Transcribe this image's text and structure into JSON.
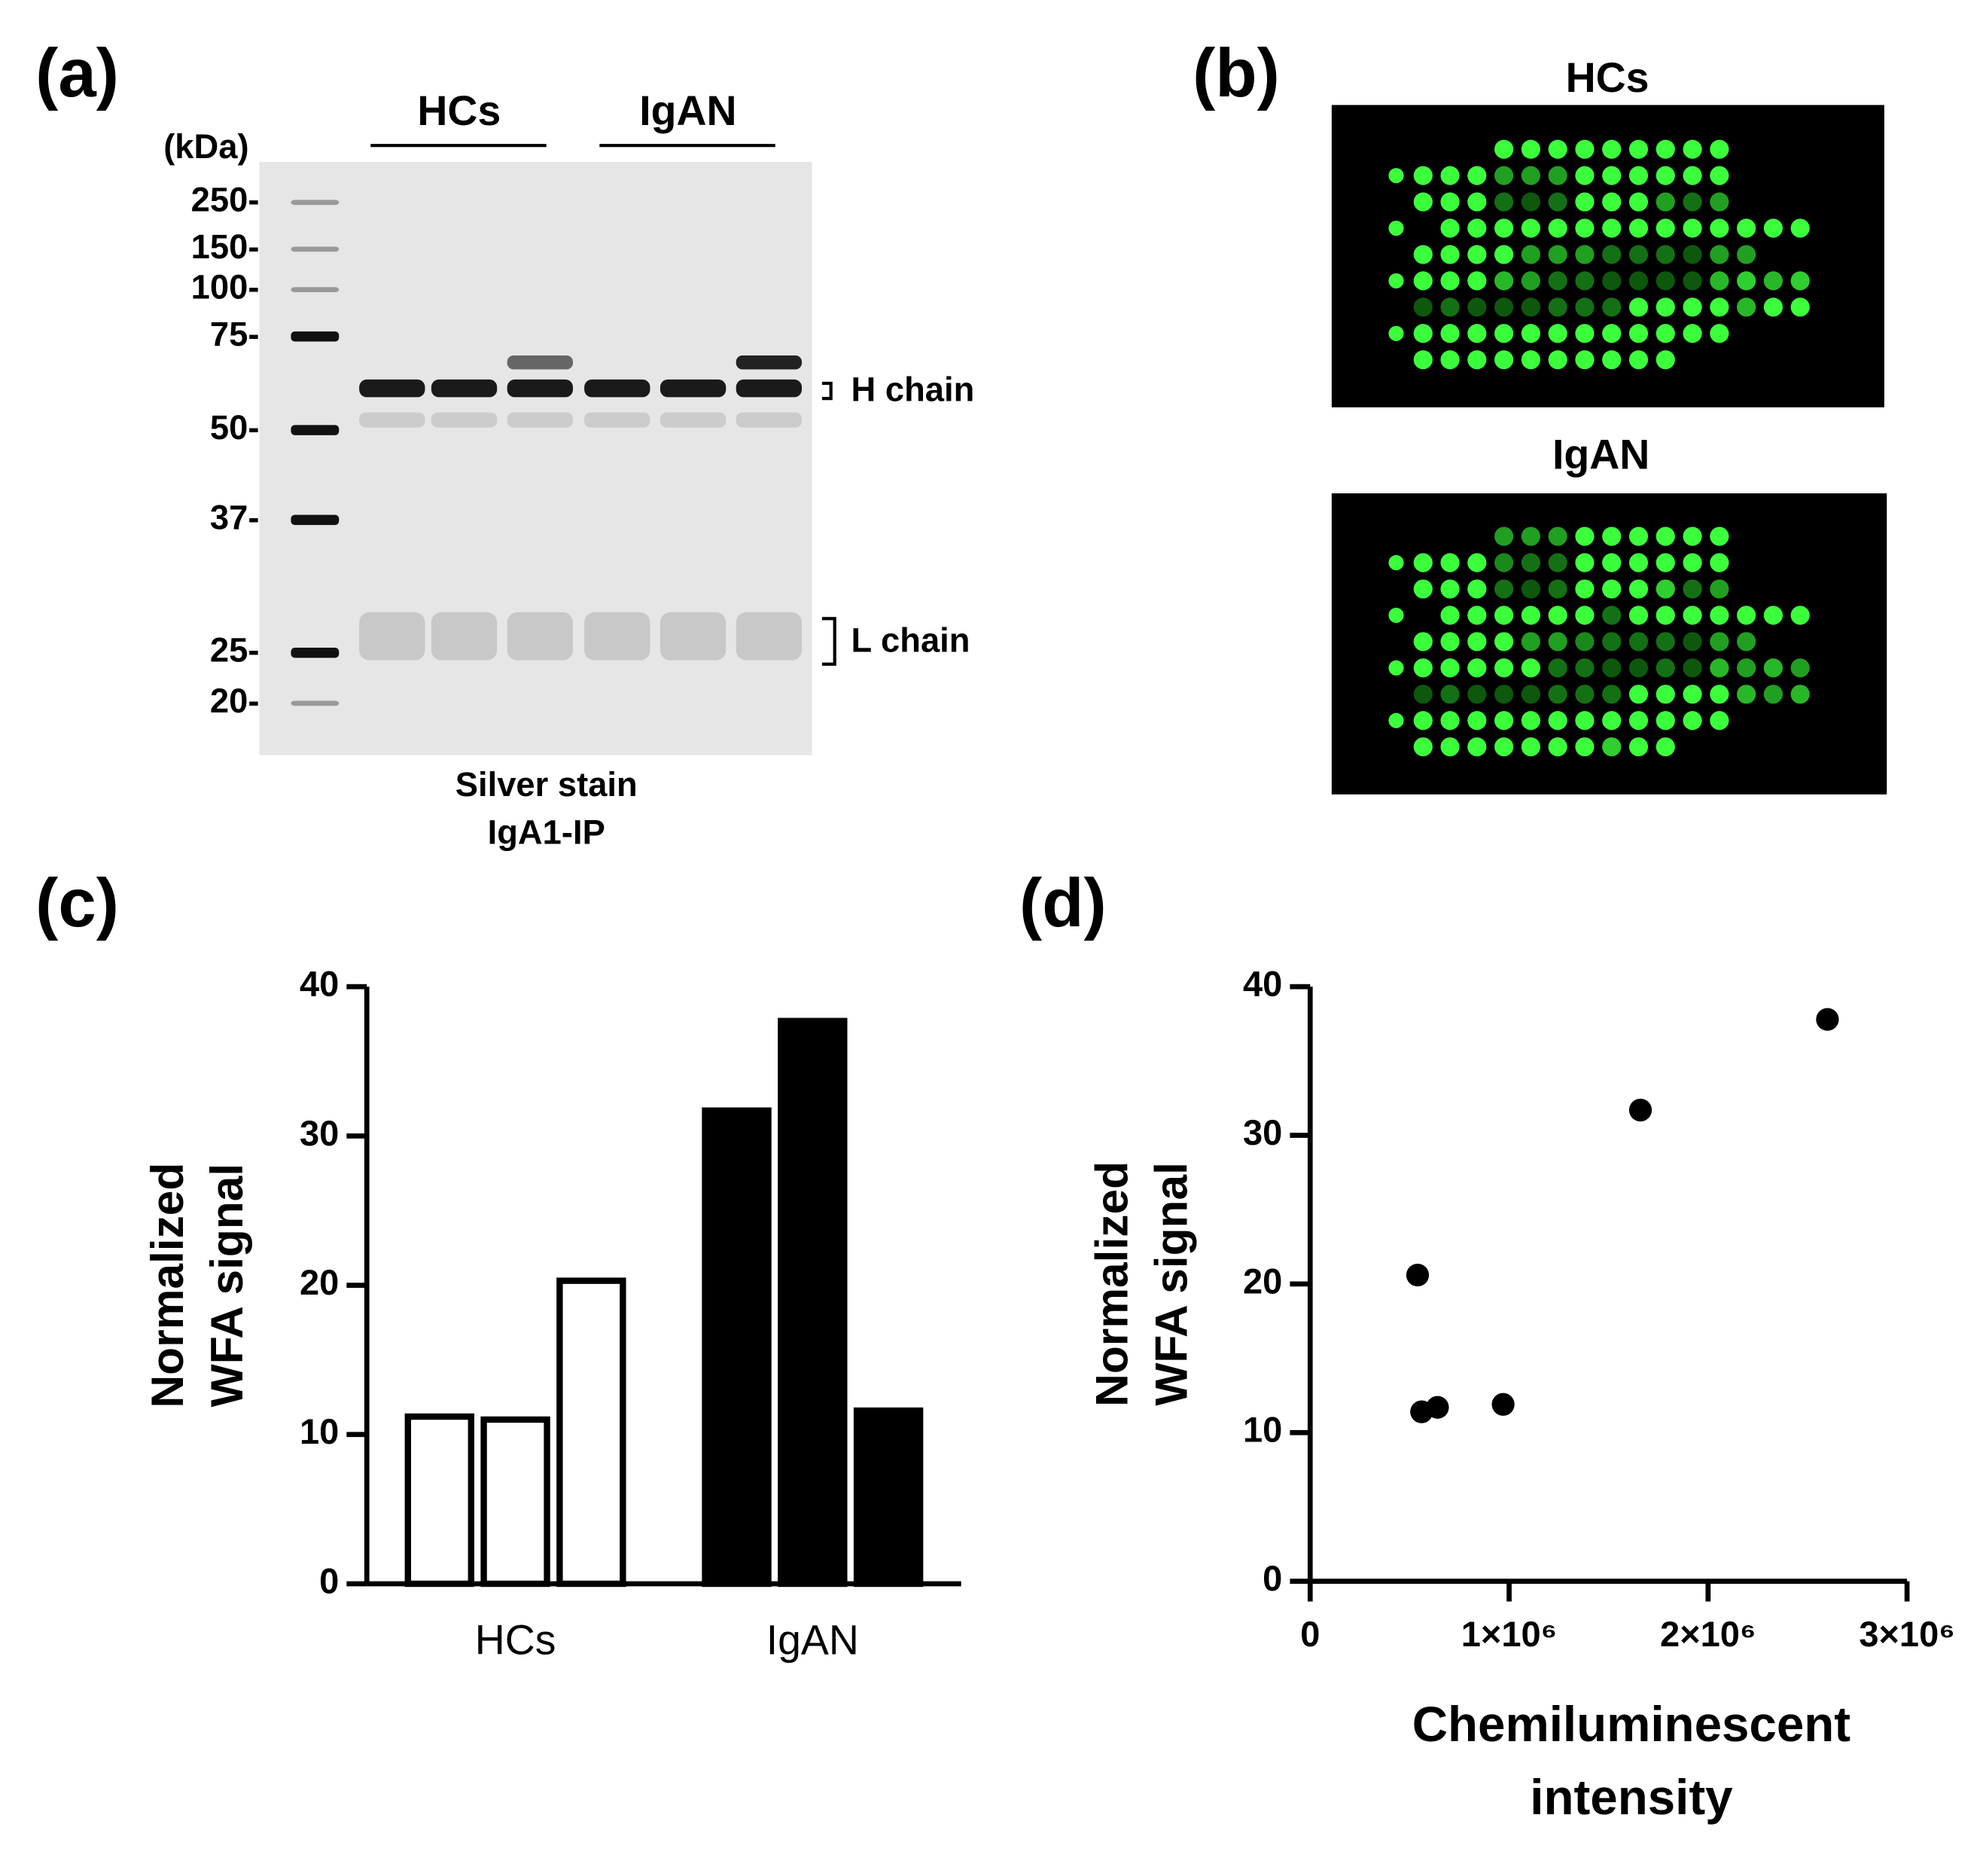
{
  "panel_a": {
    "label": "(a)",
    "unit": "(kDa)",
    "markers": [
      "250-",
      "150-",
      "100-",
      "75-",
      "50-",
      "37-",
      "25-",
      "20-"
    ],
    "groups": [
      "HCs",
      "IgAN"
    ],
    "bands": [
      "H chain",
      "L chain"
    ],
    "caption": [
      "Silver stain",
      "IgA1-IP"
    ]
  },
  "panel_b": {
    "label": "(b)",
    "titles": [
      "HCs",
      "IgAN"
    ]
  },
  "chart_data": [
    {
      "type": "bar",
      "panel": "(c)",
      "ylabel": [
        "Normalized",
        "WFA signal"
      ],
      "categories": [
        "HCs",
        "IgAN"
      ],
      "values": [
        [
          11.2,
          11.0,
          20.3
        ],
        [
          31.7,
          37.7,
          11.6
        ]
      ],
      "colors": [
        "#ffffff",
        "#000000"
      ],
      "ylim": [
        0,
        40
      ],
      "yticks": [
        0,
        10,
        20,
        30,
        40
      ]
    },
    {
      "type": "scatter",
      "panel": "(d)",
      "ylabel": [
        "Normalized",
        "WFA signal"
      ],
      "xlabel": [
        "Chemiluminescent",
        "intensity"
      ],
      "x": [
        540000,
        560000,
        640000,
        970000,
        1660000,
        2600000
      ],
      "y": [
        20.6,
        11.4,
        11.7,
        11.9,
        31.7,
        37.8
      ],
      "color": "#000000",
      "xlim": [
        0,
        3000000
      ],
      "xticks": [
        0,
        {
          "value": 1000000,
          "label": "1×10⁶"
        },
        {
          "value": 2000000,
          "label": "2×10⁶"
        },
        {
          "value": 3000000,
          "label": "3×10⁶"
        }
      ],
      "ylim": [
        0,
        40
      ],
      "yticks": [
        0,
        10,
        20,
        30,
        40
      ]
    }
  ]
}
